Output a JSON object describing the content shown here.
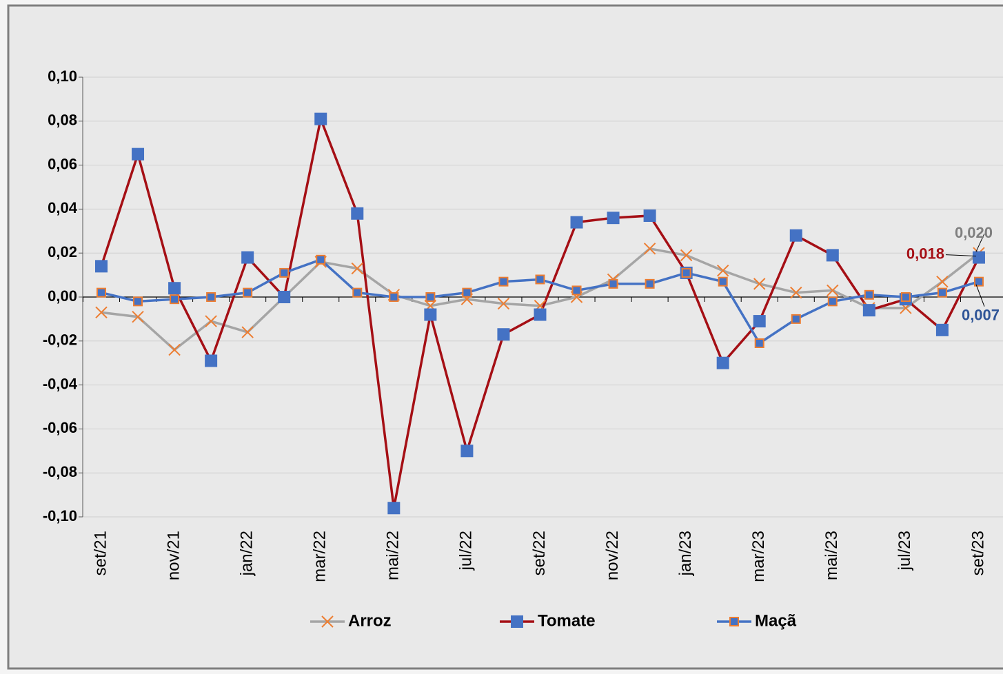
{
  "chart_data": {
    "type": "line",
    "categories": [
      "set/21",
      null,
      "nov/21",
      null,
      "jan/22",
      null,
      "mar/22",
      null,
      "mai/22",
      null,
      "jul/22",
      null,
      "set/22",
      null,
      "nov/22",
      null,
      "jan/23",
      null,
      "mar/23",
      null,
      "mai/23",
      null,
      "jul/23",
      null,
      "set/23"
    ],
    "series": [
      {
        "name": "Arroz",
        "color": "#a5a5a5",
        "marker": "x",
        "marker_color": "#ed7d31",
        "values": [
          -0.007,
          -0.009,
          -0.024,
          -0.011,
          -0.016,
          0.0,
          0.016,
          0.013,
          0.001,
          -0.004,
          -0.001,
          -0.003,
          -0.004,
          0.0,
          0.008,
          0.022,
          0.019,
          0.012,
          0.006,
          0.002,
          0.003,
          -0.005,
          -0.005,
          0.007,
          0.02
        ],
        "value_labels": [
          null,
          null,
          null,
          null,
          null,
          null,
          null,
          null,
          null,
          null,
          null,
          null,
          null,
          null,
          null,
          null,
          null,
          null,
          null,
          null,
          null,
          null,
          null,
          null,
          "0,020"
        ]
      },
      {
        "name": "Tomate",
        "color": "#a50f15",
        "marker": "square",
        "marker_color": "#4472c4",
        "values": [
          0.014,
          0.065,
          0.004,
          -0.029,
          0.018,
          0.0,
          0.081,
          0.038,
          -0.096,
          -0.008,
          -0.07,
          -0.017,
          -0.008,
          0.034,
          0.036,
          0.037,
          0.011,
          -0.03,
          -0.011,
          0.028,
          0.019,
          -0.006,
          -0.001,
          -0.015,
          0.018
        ],
        "value_labels": [
          null,
          null,
          null,
          null,
          null,
          null,
          null,
          null,
          null,
          null,
          null,
          null,
          null,
          null,
          null,
          null,
          null,
          null,
          null,
          null,
          null,
          null,
          null,
          null,
          "0,018"
        ]
      },
      {
        "name": "Maçã",
        "color": "#4472c4",
        "marker": "square-small",
        "marker_color": "#ed7d31",
        "values": [
          0.002,
          -0.002,
          -0.001,
          0.0,
          0.002,
          0.011,
          0.017,
          0.002,
          0.0,
          0.0,
          0.002,
          0.007,
          0.008,
          0.003,
          0.006,
          0.006,
          0.011,
          0.007,
          -0.021,
          -0.01,
          -0.002,
          0.001,
          0.0,
          0.002,
          0.007
        ],
        "value_labels": [
          null,
          null,
          null,
          null,
          null,
          null,
          null,
          null,
          null,
          null,
          null,
          null,
          null,
          null,
          null,
          null,
          null,
          null,
          null,
          null,
          null,
          null,
          null,
          null,
          "0,007"
        ]
      }
    ],
    "ylim": [
      -0.1,
      0.1
    ],
    "yticks": [
      {
        "value": -0.1,
        "label": "-0,10"
      },
      {
        "value": -0.08,
        "label": "-0,08"
      },
      {
        "value": -0.06,
        "label": "-0,06"
      },
      {
        "value": -0.04,
        "label": "-0,04"
      },
      {
        "value": -0.02,
        "label": "-0,02"
      },
      {
        "value": 0,
        "label": "0,00"
      },
      {
        "value": 0.02,
        "label": "0,02"
      },
      {
        "value": 0.04,
        "label": "0,04"
      },
      {
        "value": 0.06,
        "label": "0,06"
      },
      {
        "value": 0.08,
        "label": "0,08"
      },
      {
        "value": 0.1,
        "label": "0,10"
      }
    ],
    "grid": true,
    "legend": "bottom"
  }
}
